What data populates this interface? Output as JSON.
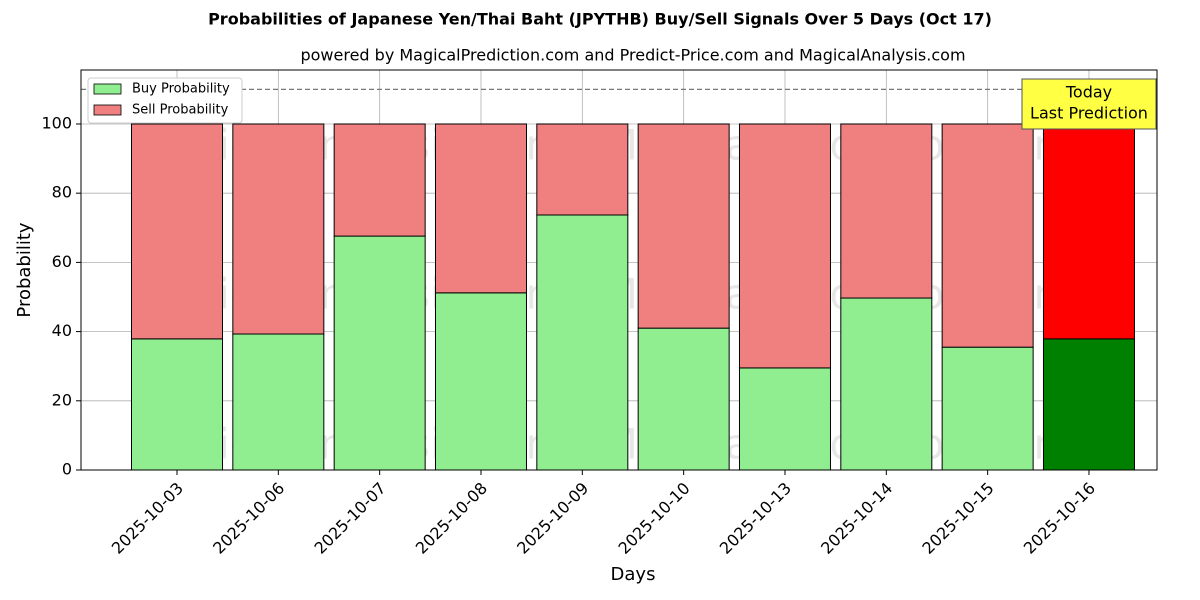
{
  "chart_data": {
    "type": "stacked_bar",
    "title": "Probabilities of Japanese Yen/Thai Baht (JPYTHB) Buy/Sell Signals Over 5 Days (Oct 17)",
    "subtitle": "powered by MagicalPrediction.com and Predict-Price.com and MagicalAnalysis.com",
    "x_label": "Days",
    "y_label": "Probability",
    "categories": [
      "2025-10-03",
      "2025-10-06",
      "2025-10-07",
      "2025-10-08",
      "2025-10-09",
      "2025-10-10",
      "2025-10-13",
      "2025-10-14",
      "2025-10-15",
      "2025-10-16"
    ],
    "series": [
      {
        "name": "Buy Probability",
        "color": "#90ee90",
        "colors": [
          "#90ee90",
          "#90ee90",
          "#90ee90",
          "#90ee90",
          "#90ee90",
          "#90ee90",
          "#90ee90",
          "#90ee90",
          "#90ee90",
          "#008000"
        ],
        "values": [
          37.9,
          39.3,
          67.6,
          51.2,
          73.7,
          41.0,
          29.5,
          49.7,
          35.5,
          37.9
        ]
      },
      {
        "name": "Sell Probability",
        "color": "#f08080",
        "colors": [
          "#f08080",
          "#f08080",
          "#f08080",
          "#f08080",
          "#f08080",
          "#f08080",
          "#f08080",
          "#f08080",
          "#f08080",
          "#ff0000"
        ],
        "values": [
          62.1,
          60.7,
          32.4,
          48.8,
          26.3,
          59.0,
          70.5,
          50.3,
          64.5,
          62.1
        ]
      }
    ],
    "ylim": [
      0,
      115.6
    ],
    "yticks": [
      0,
      20,
      40,
      60,
      80,
      100
    ],
    "reference_line": 110,
    "annotation": [
      "Today",
      "Last Prediction"
    ],
    "watermarks": [
      "MagicalAnalysis.com",
      "MagicalPrediction.com"
    ],
    "grid": true,
    "legend": "upper left"
  }
}
